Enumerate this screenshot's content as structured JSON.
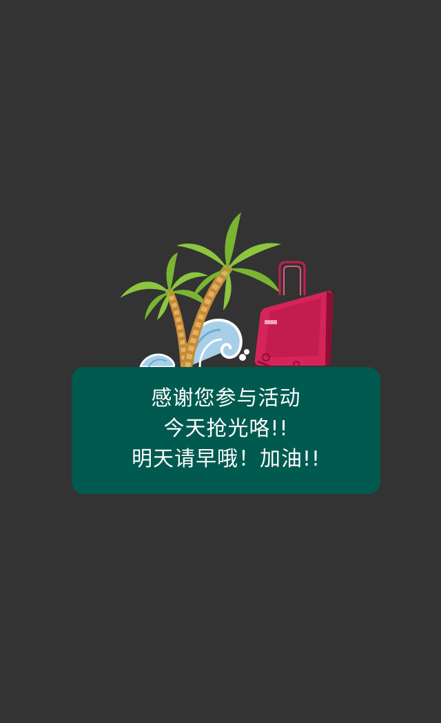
{
  "illustration": {
    "icons": [
      "palm-tree-icon",
      "wave-icon",
      "laptop-icon",
      "luggage-handle-icon"
    ],
    "colors": {
      "background": "#333333",
      "card": "#005a50",
      "palm_leaf": "#8cc63f",
      "palm_trunk": "#d9a04a",
      "laptop": "#d4245a",
      "wave": "#a8cfe8"
    }
  },
  "message": {
    "line1": "感谢您参与活动",
    "line2": "今天抢光咯!!",
    "line3": "明天请早哦！加油!!"
  }
}
